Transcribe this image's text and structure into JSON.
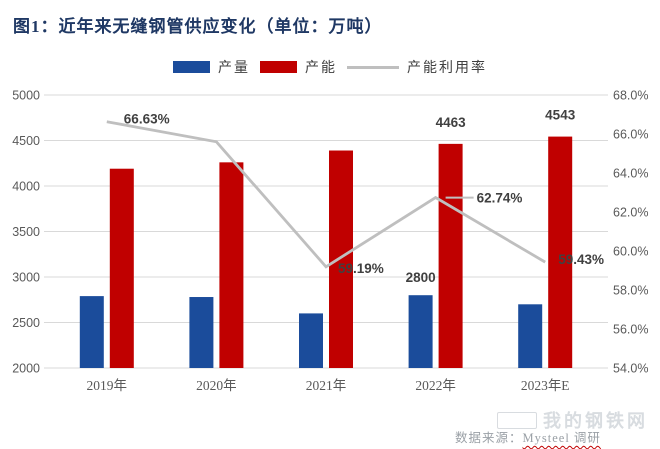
{
  "title": "图1：近年来无缝钢管供应变化（单位：万吨）",
  "legend": [
    {
      "label": "产量",
      "color": "#1b4c9b",
      "type": "rect"
    },
    {
      "label": "产能",
      "color": "#c00000",
      "type": "rect"
    },
    {
      "label": "产能利用率",
      "color": "#bfbfbf",
      "type": "line"
    }
  ],
  "footer": {
    "source_prefix": "数据来源：",
    "source_name": "Mysteel 调研",
    "watermark": "我的钢铁网"
  },
  "colors": {
    "title": "#1f3864",
    "production_bar": "#1b4c9b",
    "capacity_bar": "#c00000",
    "utilization_line": "#bfbfbf",
    "gridline": "#d9d9d9",
    "axis_text": "#595959",
    "data_label": "#404040"
  },
  "chart_data": {
    "type": "bar",
    "subtype": "grouped bars + line on secondary axis",
    "categories": [
      "2019年",
      "2020年",
      "2021年",
      "2022年",
      "2023年E"
    ],
    "series": [
      {
        "name": "产量",
        "type": "bar",
        "axis": "left",
        "color": "#1b4c9b",
        "values": [
          2790,
          2780,
          2600,
          2800,
          2700
        ],
        "labels": [
          null,
          null,
          null,
          "2800",
          null
        ]
      },
      {
        "name": "产能",
        "type": "bar",
        "axis": "left",
        "color": "#c00000",
        "values": [
          4190,
          4260,
          4390,
          4463,
          4543
        ],
        "labels": [
          null,
          null,
          null,
          "4463",
          "4543"
        ]
      },
      {
        "name": "产能利用率",
        "type": "line",
        "axis": "right",
        "color": "#bfbfbf",
        "values": [
          66.63,
          65.6,
          59.19,
          62.74,
          59.43
        ],
        "labels": [
          "66.63%",
          null,
          "59.19%",
          "62.74%",
          "59.43%"
        ]
      }
    ],
    "left_axis": {
      "min": 2000,
      "max": 5000,
      "step": 500,
      "ticks": [
        "5000",
        "4500",
        "4000",
        "3500",
        "3000",
        "2500",
        "2000"
      ]
    },
    "right_axis": {
      "min": 54,
      "max": 68,
      "step": 2,
      "ticks": [
        "68.0%",
        "66.0%",
        "64.0%",
        "62.0%",
        "60.0%",
        "58.0%",
        "56.0%",
        "54.0%"
      ]
    },
    "grid": true,
    "legend_position": "top"
  }
}
